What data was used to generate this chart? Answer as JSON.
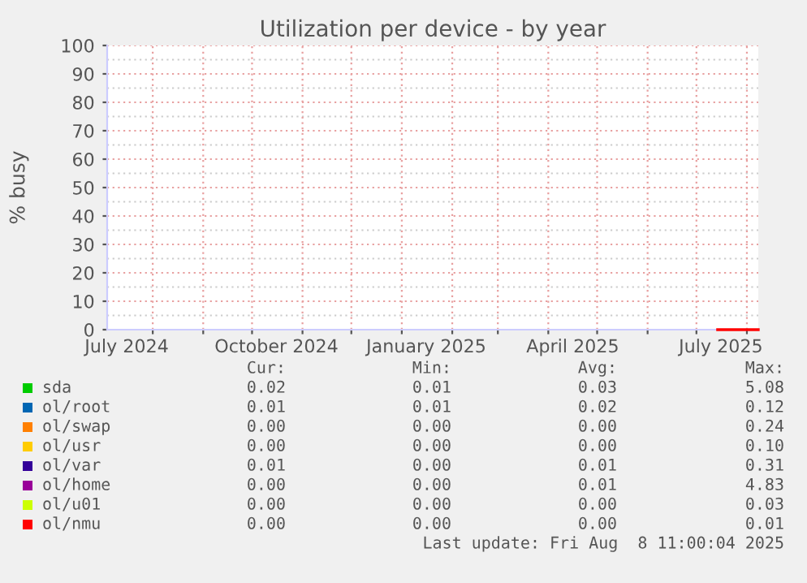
{
  "chart_data": {
    "type": "line",
    "title": "Utilization per device - by year",
    "ylabel": "% busy",
    "xlim": [
      "2024-07-04",
      "2025-08-08"
    ],
    "xticks": [
      {
        "value": "2024-08-01",
        "label": null
      },
      {
        "value": "2024-09-01",
        "label": null
      },
      {
        "value": "2024-10-01",
        "label": null
      },
      {
        "value": "2024-11-01",
        "label": null
      },
      {
        "value": "2024-12-01",
        "label": null
      },
      {
        "value": "2025-01-01",
        "label": null
      },
      {
        "value": "2025-02-01",
        "label": null
      },
      {
        "value": "2025-03-01",
        "label": null
      },
      {
        "value": "2025-04-01",
        "label": null
      },
      {
        "value": "2025-05-01",
        "label": null
      },
      {
        "value": "2025-06-01",
        "label": null
      },
      {
        "value": "2025-07-01",
        "label": null
      },
      {
        "value": "2025-08-01",
        "label": null
      },
      {
        "value": "2024-07-16",
        "label": "July 2024"
      },
      {
        "value": "2024-10-16",
        "label": "October 2024"
      },
      {
        "value": "2025-01-16",
        "label": "January 2025"
      },
      {
        "value": "2025-04-16",
        "label": "April 2025"
      },
      {
        "value": "2025-07-16",
        "label": "July 2025"
      }
    ],
    "ylim": [
      0,
      100
    ],
    "yticks": [
      0,
      10,
      20,
      30,
      40,
      50,
      60,
      70,
      80,
      90,
      100
    ],
    "grid": true,
    "legend": "bottom",
    "marker": "none",
    "line_style": "solid",
    "x": [
      "2025-07-14",
      "2025-08-08"
    ],
    "series": [
      {
        "name": "sda",
        "color": "#00cc00",
        "values": [
          null,
          null
        ]
      },
      {
        "name": "ol/root",
        "color": "#0066b3",
        "values": [
          null,
          null
        ]
      },
      {
        "name": "ol/swap",
        "color": "#ff8000",
        "values": [
          null,
          null
        ]
      },
      {
        "name": "ol/usr",
        "color": "#ffcc00",
        "values": [
          null,
          null
        ]
      },
      {
        "name": "ol/var",
        "color": "#330099",
        "values": [
          null,
          null
        ]
      },
      {
        "name": "ol/home",
        "color": "#990099",
        "values": [
          null,
          null
        ]
      },
      {
        "name": "ol/u01",
        "color": "#ccff00",
        "values": [
          null,
          null
        ]
      },
      {
        "name": "ol/nmu",
        "color": "#ff0000",
        "values": [
          0,
          0
        ]
      }
    ],
    "annotations": [
      "Cur:",
      "Min:",
      "Avg:",
      "Max:",
      "0.02",
      "0.01",
      "0.03",
      "5.08",
      "0.01",
      "0.01",
      "0.02",
      "0.12",
      "0.00",
      "0.00",
      "0.00",
      "0.24",
      "0.00",
      "0.00",
      "0.00",
      "0.10",
      "0.01",
      "0.00",
      "0.01",
      "0.31",
      "0.00",
      "0.00",
      "0.01",
      "4.83",
      "0.00",
      "0.00",
      "0.00",
      "0.03",
      "0.00",
      "0.00",
      "0.00",
      "0.01",
      "Last update: Fri Aug  8 11:00:04 2025"
    ]
  }
}
